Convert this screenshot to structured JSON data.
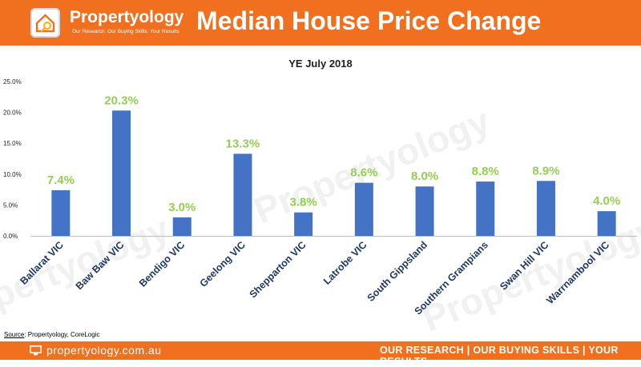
{
  "header": {
    "brand_name": "Propertyology",
    "brand_tagline": "Our Research. Our Buying Skills. Your Results",
    "title": "Median House Price Change"
  },
  "source": {
    "label": "Source",
    "text": ": Propertyology, CoreLogic"
  },
  "footer": {
    "url": "propertyology.com.au",
    "slogan": "OUR RESEARCH | OUR BUYING SKILLS | YOUR RESULTS"
  },
  "colors": {
    "brand_orange": "#f07020",
    "bar": "#4472c4",
    "data_label": "#92d050",
    "axis_label": "#1f3864"
  },
  "watermark": "Propertyology",
  "chart_data": {
    "type": "bar",
    "title": "YE July 2018",
    "categories": [
      "Ballarat VIC",
      "Baw Baw VIC",
      "Bendigo VIC",
      "Geelong VIC",
      "Shepparton VIC",
      "Latrobe VIC",
      "South Gippsland",
      "Southern Grampians",
      "Swan Hill VIC",
      "Warrnambool VIC"
    ],
    "values": [
      7.4,
      20.3,
      3.0,
      13.3,
      3.8,
      8.6,
      8.0,
      8.8,
      8.9,
      4.0
    ],
    "value_labels": [
      "7.4%",
      "20.3%",
      "3.0%",
      "13.3%",
      "3.8%",
      "8.6%",
      "8.0%",
      "8.8%",
      "8.9%",
      "4.0%"
    ],
    "yticks": [
      0,
      5,
      10,
      15,
      20,
      25
    ],
    "ytick_labels": [
      "0.0%",
      "5.0%",
      "10.0%",
      "15.0%",
      "20.0%",
      "25.0%"
    ],
    "ylim": [
      0,
      25
    ],
    "xlabel": "",
    "ylabel": "",
    "grid": false
  }
}
